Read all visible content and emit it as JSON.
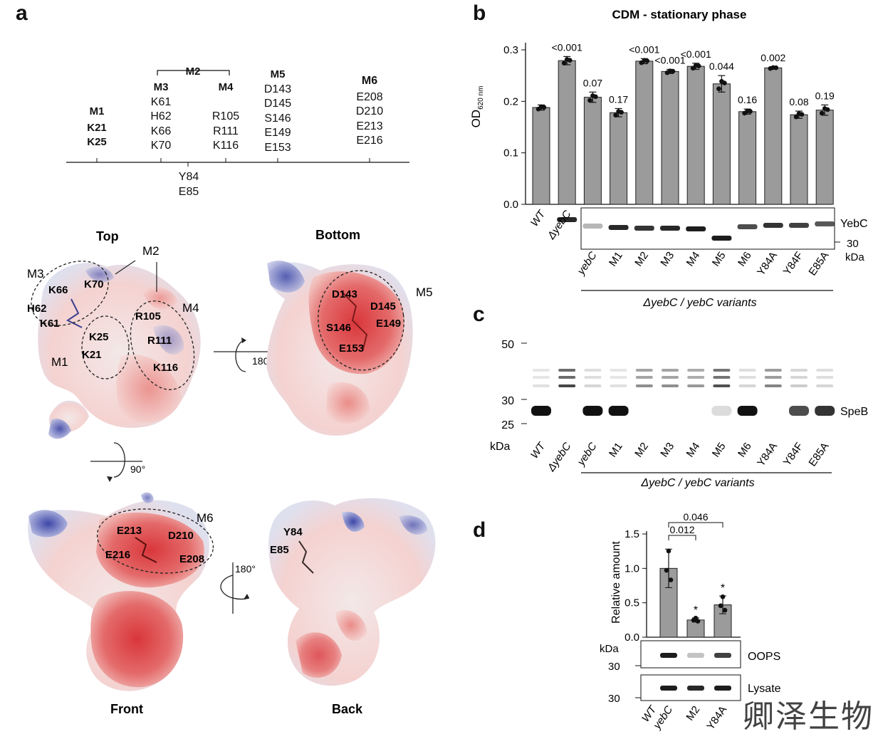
{
  "panels": {
    "a": "a",
    "b": "b",
    "c": "c",
    "d": "d"
  },
  "panel_a": {
    "groups": [
      {
        "name": "M1",
        "residues": [
          "K21",
          "K25"
        ]
      },
      {
        "name": "M3",
        "residues": [
          "K61",
          "H62",
          "K66",
          "K70"
        ]
      },
      {
        "name": "M4",
        "residues": [
          "R105",
          "R111",
          "K116"
        ]
      },
      {
        "name": "M5",
        "residues": [
          "D143",
          "D145",
          "S146",
          "E149",
          "E153"
        ]
      },
      {
        "name": "M6",
        "residues": [
          "E208",
          "D210",
          "E213",
          "E216"
        ]
      }
    ],
    "m2_label": "M2",
    "below_axis": [
      "Y84",
      "E85"
    ],
    "views": {
      "top": "Top",
      "bottom": "Bottom",
      "front": "Front",
      "back": "Back"
    },
    "rotations": {
      "r180_a": "180°",
      "r90": "90°",
      "r180_b": "180°"
    },
    "top_labels": [
      "M3",
      "M2",
      "K66",
      "K70",
      "H62",
      "K61",
      "R105",
      "M4",
      "K25",
      "K21",
      "R111",
      "M1",
      "K116"
    ],
    "bottom_labels": [
      "D143",
      "M5",
      "D145",
      "S146",
      "E149",
      "E153"
    ],
    "front_labels": [
      "M6",
      "E213",
      "D210",
      "E216",
      "E208"
    ],
    "back_labels": [
      "Y84",
      "E85"
    ]
  },
  "panel_b": {
    "chart_data": {
      "type": "bar",
      "title": "CDM - stationary phase",
      "ylabel": "OD",
      "ylabel_sub": "620 nm",
      "ylim": [
        0,
        0.3
      ],
      "yticks": [
        "0.0",
        "0.1",
        "0.2",
        "0.3"
      ],
      "categories": [
        "WT",
        "ΔyebC",
        "yebC",
        "M1",
        "M2",
        "M3",
        "M4",
        "M5",
        "M6",
        "Y84A",
        "Y84F",
        "E85A"
      ],
      "values": [
        0.188,
        0.279,
        0.208,
        0.178,
        0.278,
        0.258,
        0.268,
        0.234,
        0.18,
        0.265,
        0.174,
        0.183
      ],
      "errors": [
        0.005,
        0.008,
        0.01,
        0.008,
        0.005,
        0.004,
        0.006,
        0.016,
        0.005,
        0.002,
        0.007,
        0.01
      ],
      "pvalues": [
        "",
        "<0.001",
        "0.07",
        "0.17",
        "<0.001",
        "<0.001",
        "<0.001",
        "0.044",
        "0.16",
        "0.002",
        "0.08",
        "0.19"
      ]
    },
    "blot_label": "YebC",
    "marker": "30",
    "unit": "kDa",
    "group_label": "ΔyebC / yebC variants"
  },
  "panel_c": {
    "markers": [
      "50",
      "30",
      "25"
    ],
    "unit": "kDa",
    "band_label": "SpeB",
    "lanes": [
      "WT",
      "ΔyebC",
      "yebC",
      "M1",
      "M2",
      "M3",
      "M4",
      "M5",
      "M6",
      "Y84A",
      "Y84F",
      "E85A"
    ],
    "group_label": "ΔyebC / yebC variants"
  },
  "panel_d": {
    "chart_data": {
      "type": "bar",
      "ylabel": "Relative amount",
      "ylim": [
        0,
        1.5
      ],
      "yticks": [
        "0.0",
        "0.5",
        "1.0",
        "1.5"
      ],
      "categories": [
        "WT",
        "yebC",
        "M2",
        "Y84A"
      ],
      "values": [
        null,
        1.0,
        0.25,
        0.47
      ],
      "errors": [
        null,
        0.28,
        0.03,
        0.13
      ],
      "brackets": [
        {
          "label": "0.012",
          "from": "yebC",
          "to": "M2"
        },
        {
          "label": "0.046",
          "from": "yebC",
          "to": "Y84A"
        }
      ],
      "stars": [
        "",
        "",
        "*",
        "*"
      ]
    },
    "unit": "kDa",
    "oops_marker": "30",
    "lysate_marker": "30",
    "oops_label": "OOPS",
    "lysate_label": "Lysate"
  },
  "watermark": "卿泽生物"
}
